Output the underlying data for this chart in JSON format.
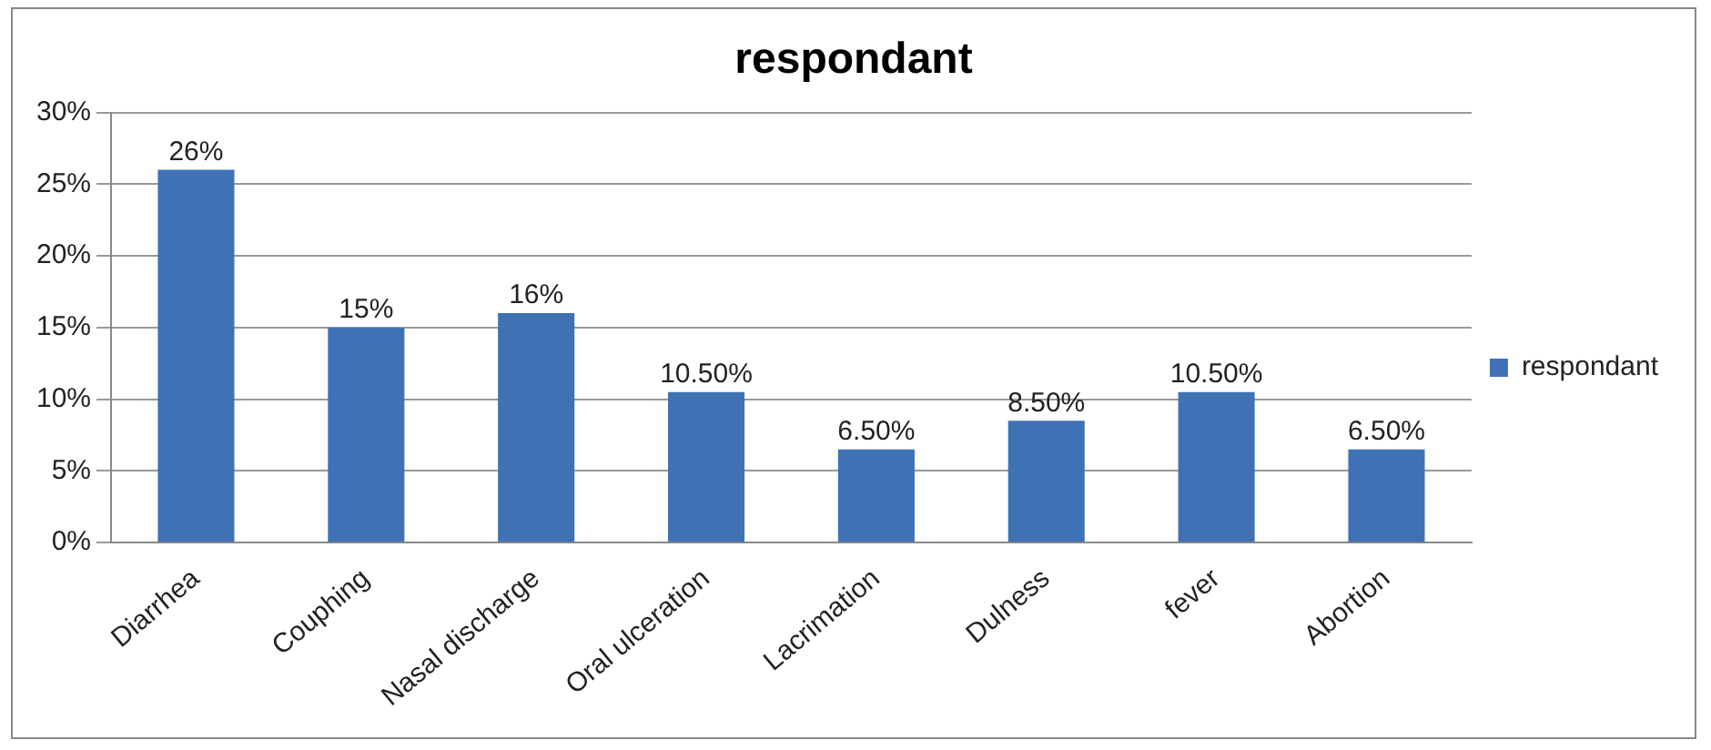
{
  "chart_data": {
    "type": "bar",
    "title": "respondant",
    "categories": [
      "Diarrhea",
      "Couphing",
      "Nasal discharge",
      "Oral ulceration",
      "Lacrimation",
      "Dulness",
      "fever",
      "Abortion"
    ],
    "series": [
      {
        "name": "respondant",
        "color": "#3f72b5",
        "values": [
          26,
          15,
          16,
          10.5,
          6.5,
          8.5,
          10.5,
          6.5
        ],
        "value_labels": [
          "26%",
          "15%",
          "16%",
          "10.50%",
          "6.50%",
          "8.50%",
          "10.50%",
          "6.50%"
        ]
      }
    ],
    "ylim": [
      0,
      30
    ],
    "yticks": [
      {
        "value": 0,
        "label": "0%"
      },
      {
        "value": 5,
        "label": "5%"
      },
      {
        "value": 10,
        "label": "10%"
      },
      {
        "value": 15,
        "label": "15%"
      },
      {
        "value": 20,
        "label": "20%"
      },
      {
        "value": 25,
        "label": "25%"
      },
      {
        "value": 30,
        "label": "30%"
      }
    ],
    "grid": "y",
    "legend": "right"
  }
}
